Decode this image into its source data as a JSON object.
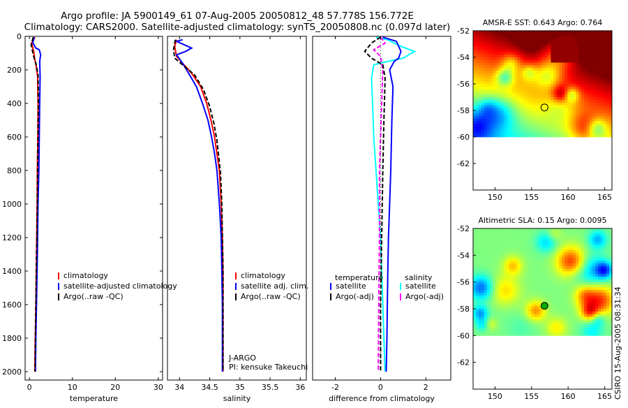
{
  "title": {
    "line1": "Argo profile: JA 5900149_61 07-Aug-2005 20050812_48 57.778S 156.772E",
    "line2": "Climatology: CARS2000. Satellite-adjusted climatology: synTS_20050808.nc (0.097d later)"
  },
  "watermark": "CSIRO 15-Aug-2005 08:31:34",
  "colors": {
    "clim": "#ff0000",
    "sat": "#0000ff",
    "argo": "#000000",
    "sal_sat": "#00ffff",
    "sal_argo": "#ff00ff"
  },
  "chart_data": [
    {
      "type": "line",
      "name_key": "temperature",
      "xlabel": "temperature",
      "ylabel": "",
      "xlim": [
        -1,
        31
      ],
      "ylim": [
        2050,
        0
      ],
      "xticks": [
        0,
        10,
        20,
        30
      ],
      "yticks": [
        0,
        200,
        400,
        600,
        800,
        1000,
        1200,
        1400,
        1600,
        1800,
        2000
      ],
      "legend": [
        "climatology",
        "satellite-adjusted climatology",
        "Argo(..raw -QC)"
      ],
      "series": [
        {
          "key": "clim",
          "style": "solid",
          "points": [
            [
              1.3,
              5
            ],
            [
              0.5,
              40
            ],
            [
              1.0,
              90
            ],
            [
              1.2,
              130
            ],
            [
              1.6,
              180
            ],
            [
              1.9,
              240
            ],
            [
              2.0,
              400
            ],
            [
              1.95,
              600
            ],
            [
              1.85,
              800
            ],
            [
              1.8,
              1000
            ],
            [
              1.7,
              1200
            ],
            [
              1.6,
              1400
            ],
            [
              1.5,
              1600
            ],
            [
              1.35,
              1800
            ],
            [
              1.25,
              2000
            ]
          ]
        },
        {
          "key": "sat",
          "style": "solid",
          "points": [
            [
              1.1,
              5
            ],
            [
              0.8,
              40
            ],
            [
              1.5,
              70
            ],
            [
              2.3,
              80
            ],
            [
              2.6,
              110
            ],
            [
              2.4,
              150
            ],
            [
              2.5,
              240
            ],
            [
              2.4,
              400
            ],
            [
              2.3,
              600
            ],
            [
              2.2,
              800
            ],
            [
              2.0,
              1000
            ],
            [
              1.9,
              1200
            ],
            [
              1.8,
              1400
            ],
            [
              1.65,
              1600
            ],
            [
              1.5,
              1800
            ],
            [
              1.4,
              2000
            ]
          ]
        },
        {
          "key": "argo",
          "style": "dash",
          "points": [
            [
              0.9,
              5
            ],
            [
              0.4,
              50
            ],
            [
              1.0,
              120
            ],
            [
              1.6,
              170
            ],
            [
              2.0,
              230
            ],
            [
              2.1,
              400
            ],
            [
              2.0,
              600
            ],
            [
              1.9,
              800
            ],
            [
              1.85,
              1000
            ],
            [
              1.75,
              1200
            ],
            [
              1.6,
              1400
            ],
            [
              1.5,
              1600
            ],
            [
              1.4,
              1800
            ],
            [
              1.3,
              2000
            ]
          ]
        }
      ]
    },
    {
      "type": "line",
      "name_key": "salinity",
      "xlabel": "salinity",
      "xlim": [
        33.8,
        36.1
      ],
      "ylim": [
        2050,
        0
      ],
      "xticks": [
        34,
        34.5,
        35,
        35.5,
        36
      ],
      "xticklabels": [
        "34",
        "34.5",
        "35",
        "35.5",
        "36"
      ],
      "legend": [
        "climatology",
        "satellite adj. clim.",
        "Argo(..raw -QC)"
      ],
      "annotation": [
        "J-ARGO",
        "PI: kensuke Takeuchi"
      ],
      "series": [
        {
          "key": "clim",
          "style": "solid",
          "points": [
            [
              33.95,
              20
            ],
            [
              33.92,
              60
            ],
            [
              33.95,
              120
            ],
            [
              34.05,
              160
            ],
            [
              34.2,
              220
            ],
            [
              34.35,
              300
            ],
            [
              34.45,
              400
            ],
            [
              34.52,
              500
            ],
            [
              34.58,
              600
            ],
            [
              34.62,
              700
            ],
            [
              34.66,
              800
            ],
            [
              34.69,
              1000
            ],
            [
              34.71,
              1200
            ],
            [
              34.72,
              1400
            ],
            [
              34.72,
              1600
            ],
            [
              34.72,
              1800
            ],
            [
              34.72,
              2000
            ]
          ]
        },
        {
          "key": "sat",
          "style": "solid",
          "points": [
            [
              34.05,
              20
            ],
            [
              33.95,
              30
            ],
            [
              34.2,
              70
            ],
            [
              34.1,
              90
            ],
            [
              33.95,
              110
            ],
            [
              34.05,
              160
            ],
            [
              34.15,
              220
            ],
            [
              34.28,
              300
            ],
            [
              34.38,
              400
            ],
            [
              34.47,
              500
            ],
            [
              34.53,
              600
            ],
            [
              34.58,
              700
            ],
            [
              34.62,
              800
            ],
            [
              34.66,
              1000
            ],
            [
              34.69,
              1200
            ],
            [
              34.7,
              1400
            ],
            [
              34.71,
              1600
            ],
            [
              34.71,
              1800
            ],
            [
              34.71,
              2000
            ]
          ]
        },
        {
          "key": "argo",
          "style": "dash",
          "points": [
            [
              33.93,
              20
            ],
            [
              33.9,
              80
            ],
            [
              33.92,
              130
            ],
            [
              34.05,
              170
            ],
            [
              34.25,
              230
            ],
            [
              34.4,
              320
            ],
            [
              34.5,
              420
            ],
            [
              34.57,
              520
            ],
            [
              34.62,
              620
            ],
            [
              34.65,
              720
            ],
            [
              34.68,
              820
            ],
            [
              34.7,
              1000
            ],
            [
              34.71,
              1200
            ],
            [
              34.72,
              1400
            ],
            [
              34.72,
              1600
            ],
            [
              34.72,
              1800
            ],
            [
              34.72,
              2000
            ]
          ]
        }
      ]
    },
    {
      "type": "line",
      "name_key": "difference",
      "xlabel": "difference from climatology",
      "xlim": [
        -3,
        3.1
      ],
      "ylim": [
        2050,
        0
      ],
      "xticks": [
        -2,
        0,
        2
      ],
      "legend_temp_title": "temperature",
      "legend_sal_title": "salinity",
      "legend_temp": [
        "satellite",
        "Argo(-adj)"
      ],
      "legend_sal": [
        "satellite",
        "Argo(-adj)"
      ],
      "series": [
        {
          "key": "sal_sat",
          "style": "solid",
          "points": [
            [
              -0.2,
              5
            ],
            [
              0.3,
              20
            ],
            [
              0.9,
              60
            ],
            [
              1.5,
              90
            ],
            [
              1.0,
              130
            ],
            [
              0.3,
              150
            ],
            [
              -0.3,
              170
            ],
            [
              -0.4,
              250
            ],
            [
              -0.35,
              400
            ],
            [
              -0.3,
              600
            ],
            [
              -0.2,
              800
            ],
            [
              -0.1,
              1000
            ],
            [
              0.0,
              1200
            ],
            [
              0.05,
              1400
            ],
            [
              0.1,
              1600
            ],
            [
              0.15,
              1800
            ],
            [
              0.2,
              2000
            ]
          ]
        },
        {
          "key": "sat",
          "style": "solid",
          "points": [
            [
              0.1,
              5
            ],
            [
              0.7,
              30
            ],
            [
              0.9,
              90
            ],
            [
              0.8,
              130
            ],
            [
              0.6,
              150
            ],
            [
              0.4,
              200
            ],
            [
              0.55,
              300
            ],
            [
              0.5,
              500
            ],
            [
              0.45,
              800
            ],
            [
              0.4,
              1000
            ],
            [
              0.35,
              1200
            ],
            [
              0.32,
              1400
            ],
            [
              0.3,
              1600
            ],
            [
              0.28,
              1800
            ],
            [
              0.25,
              2000
            ]
          ]
        },
        {
          "key": "sal_argo",
          "style": "dash",
          "points": [
            [
              0.0,
              5
            ],
            [
              0.2,
              40
            ],
            [
              -0.3,
              80
            ],
            [
              0.0,
              120
            ],
            [
              0.1,
              200
            ],
            [
              0.05,
              400
            ],
            [
              0.0,
              600
            ],
            [
              -0.05,
              800
            ],
            [
              -0.05,
              1200
            ],
            [
              -0.08,
              1600
            ],
            [
              -0.1,
              2000
            ]
          ]
        },
        {
          "key": "argo",
          "style": "dash",
          "points": [
            [
              0.0,
              5
            ],
            [
              -0.4,
              40
            ],
            [
              -0.7,
              90
            ],
            [
              -0.4,
              130
            ],
            [
              0.1,
              170
            ],
            [
              0.2,
              250
            ],
            [
              0.15,
              500
            ],
            [
              0.1,
              800
            ],
            [
              0.05,
              1200
            ],
            [
              0.0,
              1600
            ],
            [
              0.0,
              2000
            ]
          ]
        },
        {
          "key": "zero",
          "style": "dot",
          "points": [
            [
              0,
              0
            ],
            [
              0,
              2000
            ]
          ]
        }
      ]
    },
    {
      "type": "heatmap",
      "name_key": "sst_map",
      "title": "AMSR-E SST: 0.643 Argo: 0.764",
      "xlim": [
        147,
        166
      ],
      "ylim": [
        -64,
        -52
      ],
      "data_ylim": [
        -60,
        -52
      ],
      "xticks": [
        150,
        155,
        160,
        165
      ],
      "yticks": [
        -52,
        -54,
        -56,
        -58,
        -60,
        -62
      ],
      "marker": [
        156.77,
        -57.78
      ]
    },
    {
      "type": "heatmap",
      "name_key": "sla_map",
      "title": "Altimetric SLA: 0.15 Argo: 0.0095",
      "xlim": [
        147,
        166
      ],
      "ylim": [
        -64,
        -52
      ],
      "data_ylim": [
        -60,
        -52
      ],
      "xticks": [
        150,
        155,
        160,
        165
      ],
      "yticks": [
        -52,
        -54,
        -56,
        -58,
        -60,
        -62
      ],
      "marker": [
        156.77,
        -57.78
      ]
    }
  ]
}
